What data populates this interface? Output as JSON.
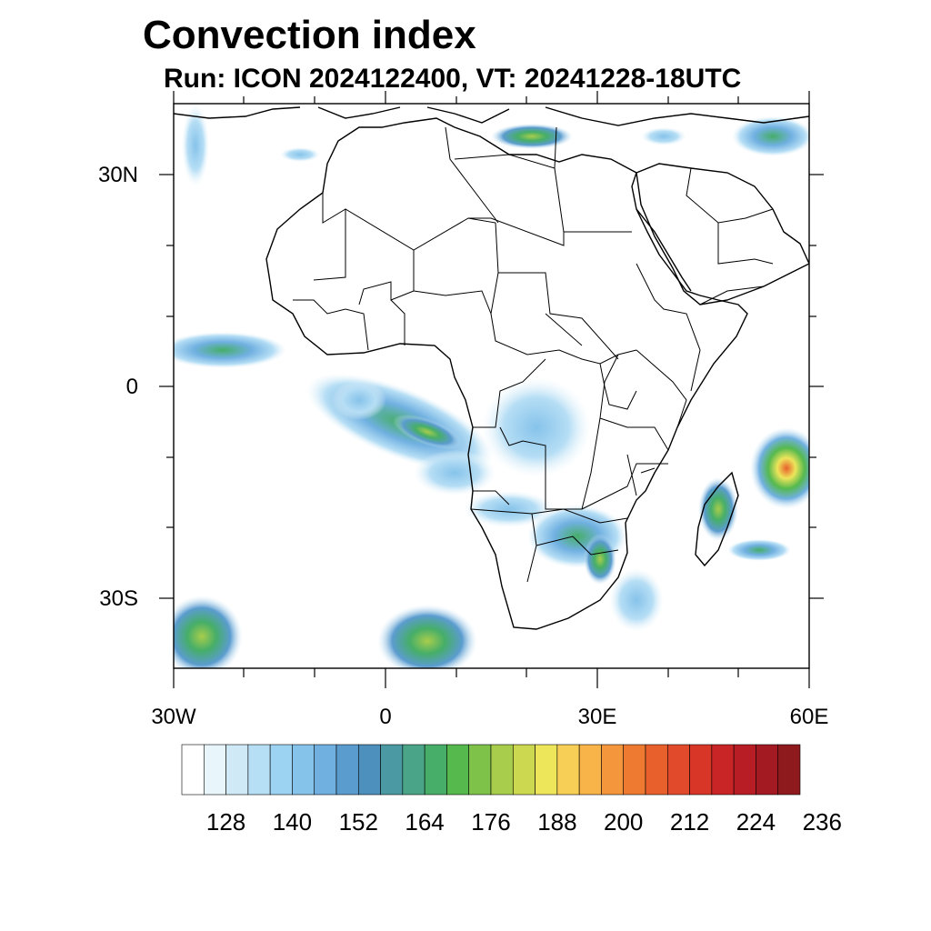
{
  "title": "Convection index",
  "subtitle": "Run: ICON 2024122400,  VT: 20241228-18UTC",
  "axes": {
    "lat_labels": [
      "30N",
      "0",
      "30S"
    ],
    "lon_labels": [
      "30W",
      "0",
      "30E",
      "60E"
    ]
  },
  "colorbar": {
    "labels": [
      "128",
      "140",
      "152",
      "164",
      "176",
      "188",
      "200",
      "212",
      "224",
      "236"
    ],
    "colors": [
      "#ffffff",
      "#e8f5fb",
      "#cfe9f7",
      "#b6def5",
      "#9dd3f2",
      "#86c3ea",
      "#70b0e1",
      "#5b9ccf",
      "#4d8fbd",
      "#4b9aa3",
      "#4aa588",
      "#46ae68",
      "#55b94e",
      "#7fc24a",
      "#a8cd4c",
      "#ccd84f",
      "#ede55a",
      "#f8cf56",
      "#f8b448",
      "#f4963c",
      "#ee7a32",
      "#e8602c",
      "#e14a2a",
      "#d83728",
      "#c92526",
      "#b81d25",
      "#a31a22",
      "#8e1a1d"
    ]
  },
  "map_legend": {
    "land": "#ffffff",
    "border": "#000000"
  }
}
